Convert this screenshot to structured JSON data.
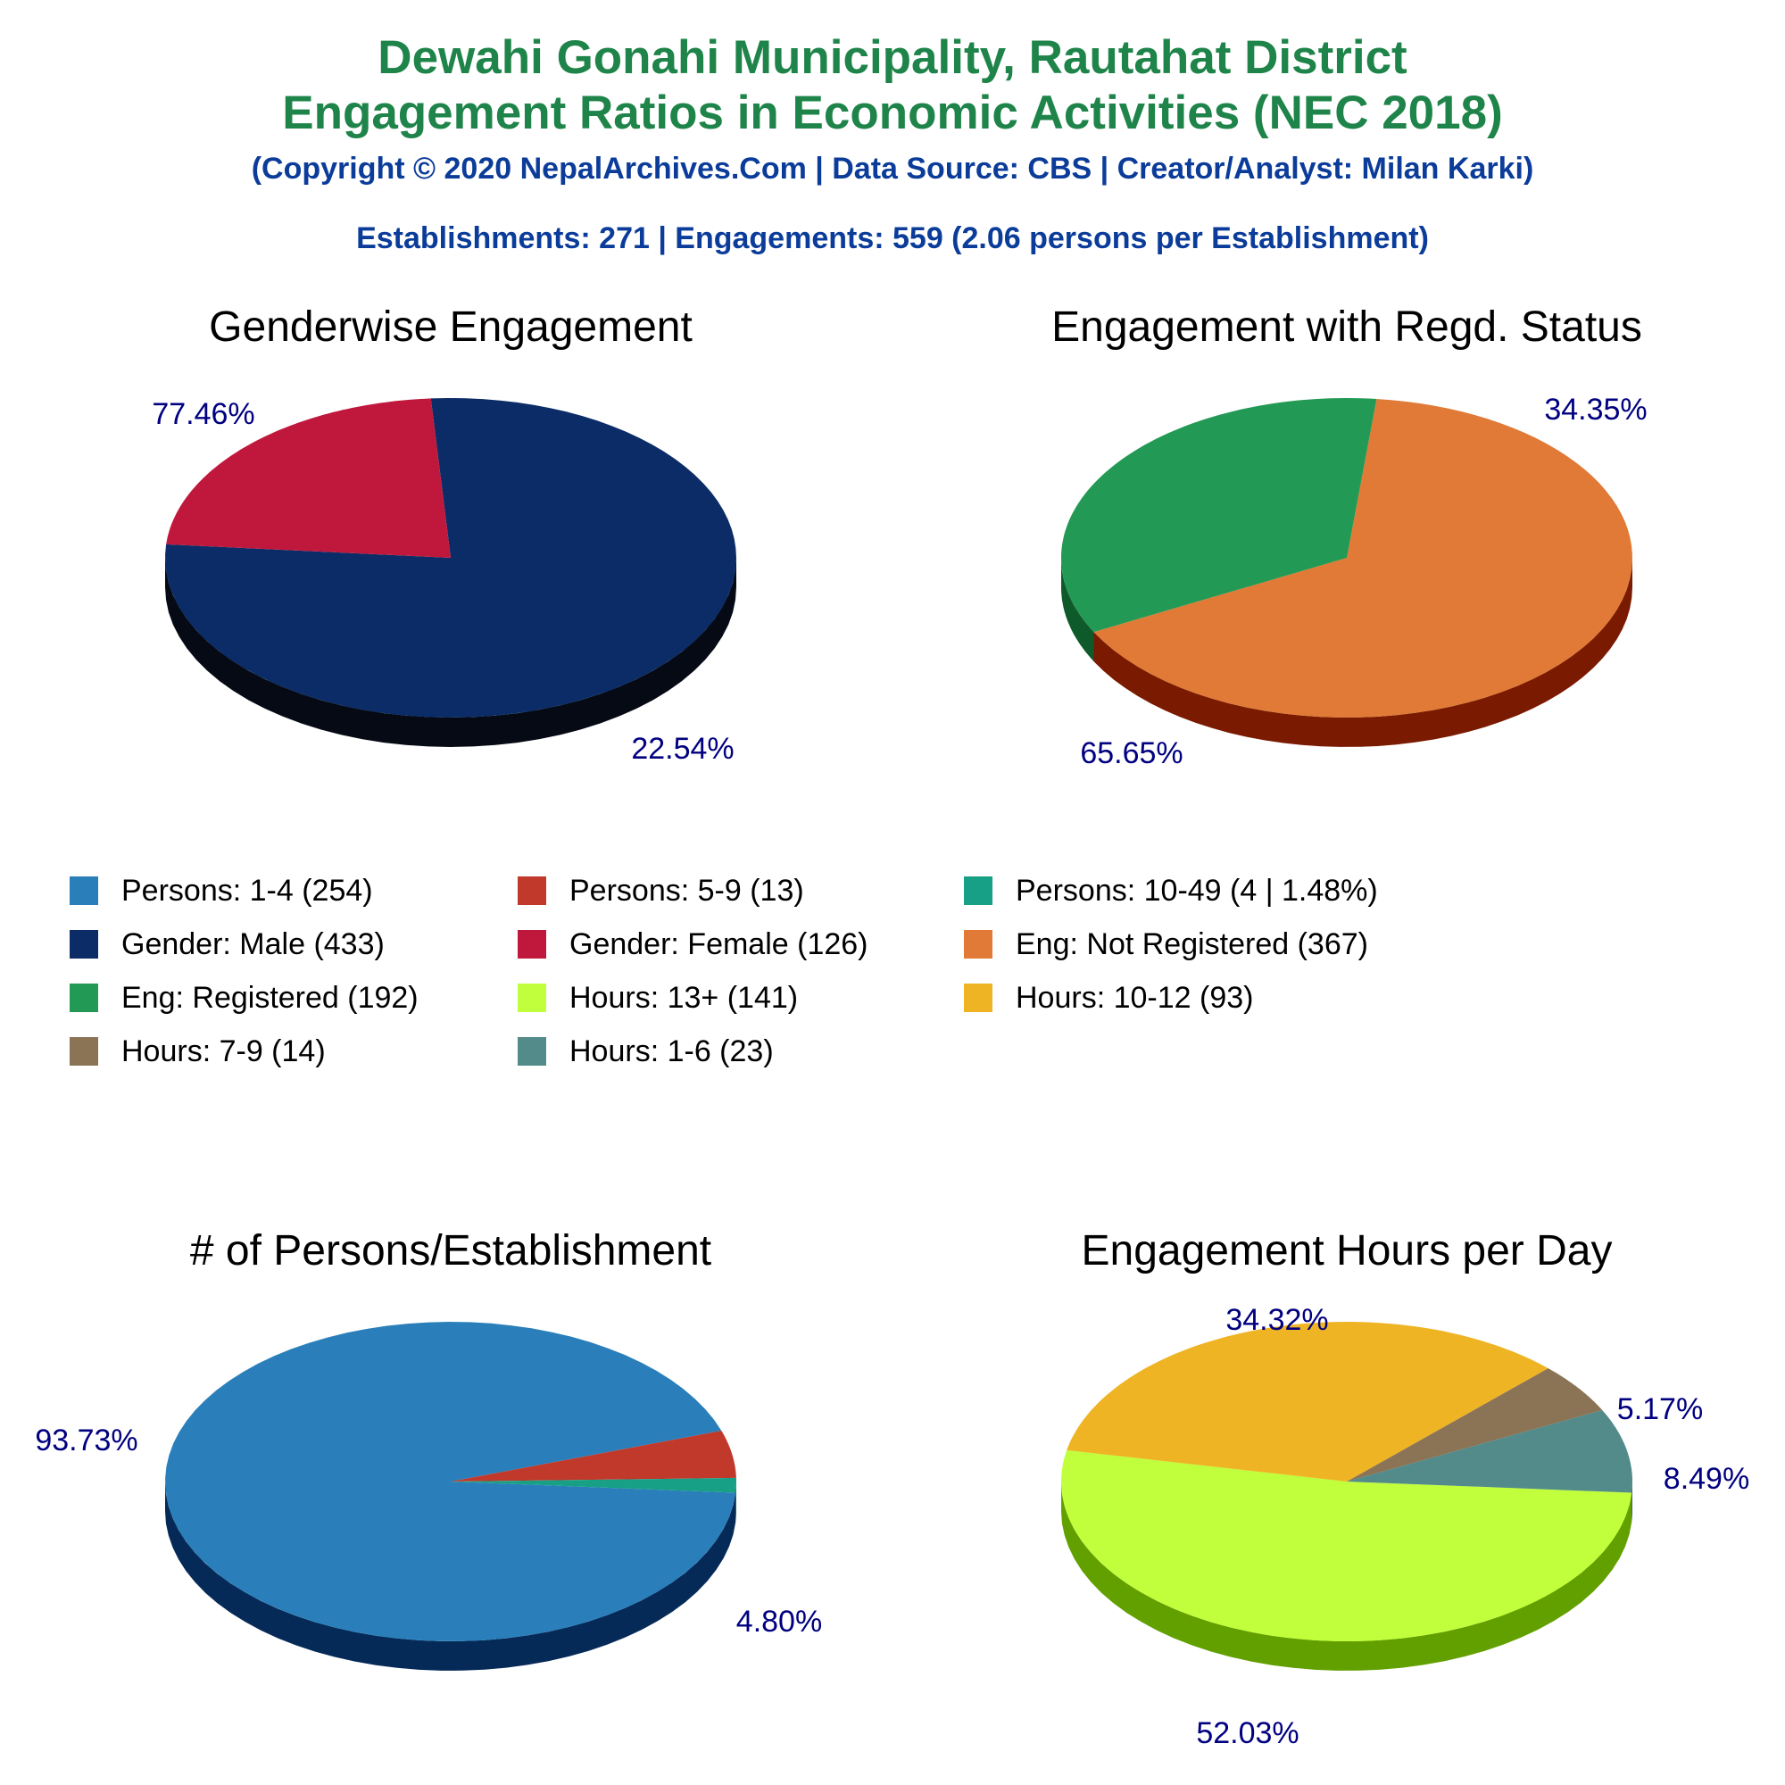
{
  "header": {
    "title_line1": "Dewahi Gonahi Municipality, Rautahat District",
    "title_line2": "Engagement Ratios in Economic Activities (NEC 2018)",
    "subtitle": "(Copyright © 2020 NepalArchives.Com | Data Source: CBS | Creator/Analyst: Milan Karki)",
    "stats": "Establishments: 271 | Engagements: 559 (2.06 persons per Establishment)"
  },
  "legend": [
    {
      "label": "Persons: 1-4 (254)",
      "color": "#2a7fba"
    },
    {
      "label": "Persons: 5-9 (13)",
      "color": "#c0392b"
    },
    {
      "label": "Persons: 10-49 (4 | 1.48%)",
      "color": "#17a085"
    },
    {
      "label": "Gender: Male (433)",
      "color": "#0b2c66"
    },
    {
      "label": "Gender: Female (126)",
      "color": "#c0183c"
    },
    {
      "label": "Eng: Not Registered (367)",
      "color": "#e07a36"
    },
    {
      "label": "Eng: Registered (192)",
      "color": "#229954"
    },
    {
      "label": "Hours: 13+ (141)",
      "color": "#c1ff3c"
    },
    {
      "label": "Hours: 10-12 (93)",
      "color": "#eeb424"
    },
    {
      "label": "Hours: 7-9 (14)",
      "color": "#8b7355"
    },
    {
      "label": "Hours: 1-6 (23)",
      "color": "#538a8a"
    }
  ],
  "chart_data": [
    {
      "type": "pie",
      "title": "Genderwise Engagement",
      "start_angle_deg": 94,
      "slices": [
        {
          "name": "Gender: Male",
          "value": 433,
          "label": "77.46%",
          "color": "#0b2c66",
          "side_color": "#050a14"
        },
        {
          "name": "Gender: Female",
          "value": 126,
          "label": "22.54%",
          "color": "#c0183c",
          "side_color": "#6b0008"
        }
      ]
    },
    {
      "type": "pie",
      "title": "Engagement with Regd. Status",
      "start_angle_deg": 84,
      "slices": [
        {
          "name": "Eng: Not Registered",
          "value": 367,
          "label": "65.65%",
          "color": "#e07a36",
          "side_color": "#7a1a00"
        },
        {
          "name": "Eng: Registered",
          "value": 192,
          "label": "34.35%",
          "color": "#229954",
          "side_color": "#0e5a2a"
        }
      ]
    },
    {
      "type": "pie",
      "title": "# of Persons/Establishment",
      "start_angle_deg": 356,
      "slices": [
        {
          "name": "Persons: 1-4",
          "value": 254,
          "label": "93.73%",
          "color": "#2a7fba",
          "side_color": "#062a58"
        },
        {
          "name": "Persons: 5-9",
          "value": 13,
          "label": "4.80%",
          "color": "#c0392b",
          "side_color": "#6b0008"
        },
        {
          "name": "Persons: 10-49",
          "value": 4,
          "label": "",
          "color": "#17a085",
          "side_color": "#0a5a48"
        }
      ]
    },
    {
      "type": "pie",
      "title": "Engagement Hours per Day",
      "start_angle_deg": 356,
      "slices": [
        {
          "name": "Hours: 13+",
          "value": 141,
          "label": "52.03%",
          "color": "#c1ff3c",
          "side_color": "#62a000"
        },
        {
          "name": "Hours: 10-12",
          "value": 93,
          "label": "34.32%",
          "color": "#eeb424",
          "side_color": "#8a6000"
        },
        {
          "name": "Hours: 7-9",
          "value": 14,
          "label": "5.17%",
          "color": "#8b7355",
          "side_color": "#4a3a28"
        },
        {
          "name": "Hours: 1-6",
          "value": 23,
          "label": "8.49%",
          "color": "#538a8a",
          "side_color": "#2a4a4a"
        }
      ]
    }
  ]
}
